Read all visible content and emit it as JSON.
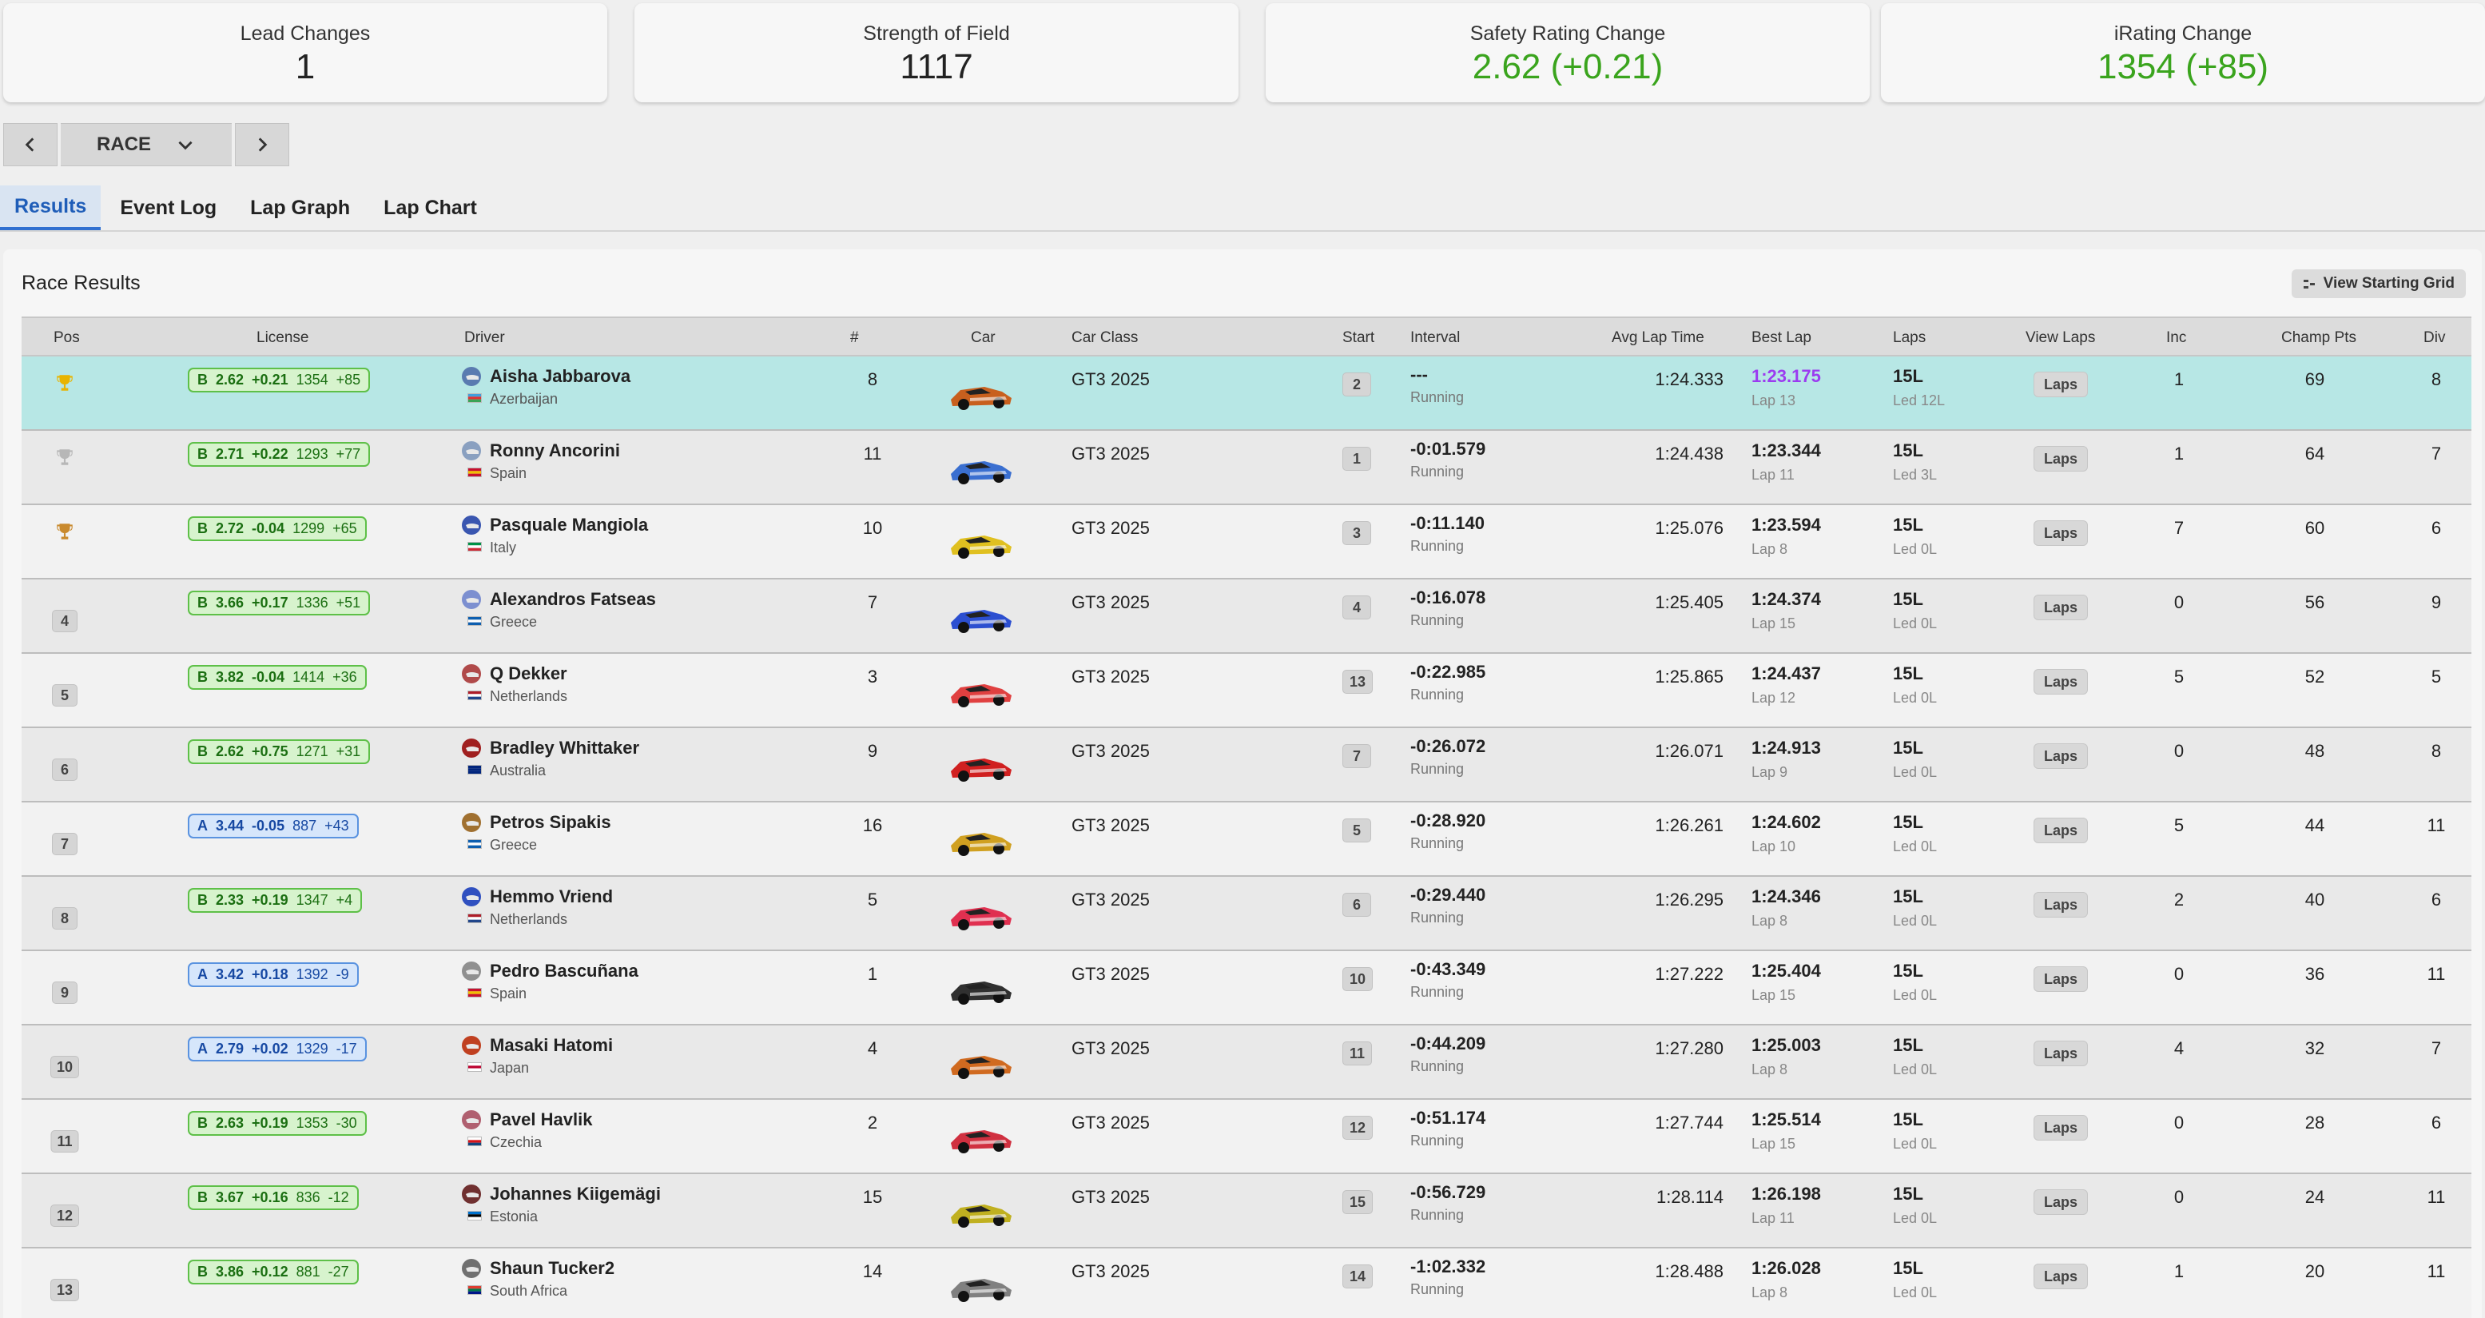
{
  "stats": [
    {
      "label": "Lead Changes",
      "value": "1",
      "color": "#222222"
    },
    {
      "label": "Strength of Field",
      "value": "1117",
      "color": "#222222"
    },
    {
      "label": "Safety Rating Change",
      "value": "2.62 (+0.21)",
      "color": "#3aa41d"
    },
    {
      "label": "iRating Change",
      "value": "1354 (+85)",
      "color": "#3aa41d"
    }
  ],
  "session_nav": {
    "selected": "RACE",
    "prev_icon": "chevron-left-icon",
    "next_icon": "chevron-right-icon",
    "dropdown_icon": "chevron-down-icon"
  },
  "tabs": [
    {
      "label": "Results",
      "active": true
    },
    {
      "label": "Event Log",
      "active": false
    },
    {
      "label": "Lap Graph",
      "active": false
    },
    {
      "label": "Lap Chart",
      "active": false
    }
  ],
  "panel": {
    "title": "Race Results",
    "grid_button": "View Starting Grid",
    "grid_icon": "grid-icon"
  },
  "columns": [
    "Pos",
    "License",
    "Driver",
    "#",
    "Car",
    "Car Class",
    "Start",
    "Interval",
    "Avg Lap Time",
    "Best Lap",
    "Laps",
    "View Laps",
    "Inc",
    "Champ Pts",
    "Div"
  ],
  "laps_button": "Laps",
  "colors": {
    "license_b": "#5ec048",
    "license_a": "#5a93e0",
    "winner_row": "#b7e7e5",
    "fastest_lap": "#9b3cf0",
    "positive": "#3aa41d"
  },
  "rows": [
    {
      "pos": "",
      "trophy": "gold",
      "lic_class": "B",
      "lic_sr": "2.62",
      "lic_sr_delta": "+0.21",
      "lic_ir": "1354",
      "lic_ir_delta": "+85",
      "lic_color": "green",
      "driver": "Aisha Jabbarova",
      "country": "Azerbaijan",
      "flag": [
        "#3f9fdc",
        "#e03030",
        "#3aa356"
      ],
      "helmet": "#5a7bb0",
      "number": "8",
      "car_color": "#c8601e",
      "class": "GT3 2025",
      "start": "2",
      "interval": "---",
      "status": "Running",
      "avg": "1:24.333",
      "best": "1:23.175",
      "best_lap": "Lap 13",
      "best_purple": true,
      "laps": "15L",
      "led": "Led 12L",
      "inc": "1",
      "pts": "69",
      "div": "8"
    },
    {
      "pos": "",
      "trophy": "silver",
      "lic_class": "B",
      "lic_sr": "2.71",
      "lic_sr_delta": "+0.22",
      "lic_ir": "1293",
      "lic_ir_delta": "+77",
      "lic_color": "green",
      "driver": "Ronny Ancorini",
      "country": "Spain",
      "flag": [
        "#c8102e",
        "#f1bf00",
        "#c8102e"
      ],
      "helmet": "#8aa0c0",
      "number": "11",
      "car_color": "#3a6fd0",
      "class": "GT3 2025",
      "start": "1",
      "interval": "-0:01.579",
      "status": "Running",
      "avg": "1:24.438",
      "best": "1:23.344",
      "best_lap": "Lap 11",
      "best_purple": false,
      "laps": "15L",
      "led": "Led 3L",
      "inc": "1",
      "pts": "64",
      "div": "7"
    },
    {
      "pos": "",
      "trophy": "bronze",
      "lic_class": "B",
      "lic_sr": "2.72",
      "lic_sr_delta": "-0.04",
      "lic_ir": "1299",
      "lic_ir_delta": "+65",
      "lic_color": "green",
      "driver": "Pasquale Mangiola",
      "country": "Italy",
      "flag": [
        "#009246",
        "#ffffff",
        "#ce2b37"
      ],
      "helmet": "#3a56b0",
      "number": "10",
      "car_color": "#e0c020",
      "class": "GT3 2025",
      "start": "3",
      "interval": "-0:11.140",
      "status": "Running",
      "avg": "1:25.076",
      "best": "1:23.594",
      "best_lap": "Lap 8",
      "best_purple": false,
      "laps": "15L",
      "led": "Led 0L",
      "inc": "7",
      "pts": "60",
      "div": "6"
    },
    {
      "pos": "4",
      "trophy": "",
      "lic_class": "B",
      "lic_sr": "3.66",
      "lic_sr_delta": "+0.17",
      "lic_ir": "1336",
      "lic_ir_delta": "+51",
      "lic_color": "green",
      "driver": "Alexandros Fatseas",
      "country": "Greece",
      "flag": [
        "#0d5eaf",
        "#ffffff",
        "#0d5eaf"
      ],
      "helmet": "#7c8fd0",
      "number": "7",
      "car_color": "#2c4fd0",
      "class": "GT3 2025",
      "start": "4",
      "interval": "-0:16.078",
      "status": "Running",
      "avg": "1:25.405",
      "best": "1:24.374",
      "best_lap": "Lap 15",
      "best_purple": false,
      "laps": "15L",
      "led": "Led 0L",
      "inc": "0",
      "pts": "56",
      "div": "9"
    },
    {
      "pos": "5",
      "trophy": "",
      "lic_class": "B",
      "lic_sr": "3.82",
      "lic_sr_delta": "-0.04",
      "lic_ir": "1414",
      "lic_ir_delta": "+36",
      "lic_color": "green",
      "driver": "Q Dekker",
      "country": "Netherlands",
      "flag": [
        "#ae1c28",
        "#ffffff",
        "#21468b"
      ],
      "helmet": "#b04a4a",
      "number": "3",
      "car_color": "#e04040",
      "class": "GT3 2025",
      "start": "13",
      "interval": "-0:22.985",
      "status": "Running",
      "avg": "1:25.865",
      "best": "1:24.437",
      "best_lap": "Lap 12",
      "best_purple": false,
      "laps": "15L",
      "led": "Led 0L",
      "inc": "5",
      "pts": "52",
      "div": "5"
    },
    {
      "pos": "6",
      "trophy": "",
      "lic_class": "B",
      "lic_sr": "2.62",
      "lic_sr_delta": "+0.75",
      "lic_ir": "1271",
      "lic_ir_delta": "+31",
      "lic_color": "green",
      "driver": "Bradley Whittaker",
      "country": "Australia",
      "flag": [
        "#00247d",
        "#00247d",
        "#00247d"
      ],
      "helmet": "#a02020",
      "number": "9",
      "car_color": "#d02020",
      "class": "GT3 2025",
      "start": "7",
      "interval": "-0:26.072",
      "status": "Running",
      "avg": "1:26.071",
      "best": "1:24.913",
      "best_lap": "Lap 9",
      "best_purple": false,
      "laps": "15L",
      "led": "Led 0L",
      "inc": "0",
      "pts": "48",
      "div": "8"
    },
    {
      "pos": "7",
      "trophy": "",
      "lic_class": "A",
      "lic_sr": "3.44",
      "lic_sr_delta": "-0.05",
      "lic_ir": "887",
      "lic_ir_delta": "+43",
      "lic_color": "blue",
      "driver": "Petros Sipakis",
      "country": "Greece",
      "flag": [
        "#0d5eaf",
        "#ffffff",
        "#0d5eaf"
      ],
      "helmet": "#a07030",
      "number": "16",
      "car_color": "#d0a020",
      "class": "GT3 2025",
      "start": "5",
      "interval": "-0:28.920",
      "status": "Running",
      "avg": "1:26.261",
      "best": "1:24.602",
      "best_lap": "Lap 10",
      "best_purple": false,
      "laps": "15L",
      "led": "Led 0L",
      "inc": "5",
      "pts": "44",
      "div": "11"
    },
    {
      "pos": "8",
      "trophy": "",
      "lic_class": "B",
      "lic_sr": "2.33",
      "lic_sr_delta": "+0.19",
      "lic_ir": "1347",
      "lic_ir_delta": "+4",
      "lic_color": "green",
      "driver": "Hemmo Vriend",
      "country": "Netherlands",
      "flag": [
        "#ae1c28",
        "#ffffff",
        "#21468b"
      ],
      "helmet": "#3050c0",
      "number": "5",
      "car_color": "#e03050",
      "class": "GT3 2025",
      "start": "6",
      "interval": "-0:29.440",
      "status": "Running",
      "avg": "1:26.295",
      "best": "1:24.346",
      "best_lap": "Lap 8",
      "best_purple": false,
      "laps": "15L",
      "led": "Led 0L",
      "inc": "2",
      "pts": "40",
      "div": "6"
    },
    {
      "pos": "9",
      "trophy": "",
      "lic_class": "A",
      "lic_sr": "3.42",
      "lic_sr_delta": "+0.18",
      "lic_ir": "1392",
      "lic_ir_delta": "-9",
      "lic_color": "blue",
      "driver": "Pedro Bascuñana",
      "country": "Spain",
      "flag": [
        "#c8102e",
        "#f1bf00",
        "#c8102e"
      ],
      "helmet": "#909090",
      "number": "1",
      "car_color": "#303030",
      "class": "GT3 2025",
      "start": "10",
      "interval": "-0:43.349",
      "status": "Running",
      "avg": "1:27.222",
      "best": "1:25.404",
      "best_lap": "Lap 15",
      "best_purple": false,
      "laps": "15L",
      "led": "Led 0L",
      "inc": "0",
      "pts": "36",
      "div": "11"
    },
    {
      "pos": "10",
      "trophy": "",
      "lic_class": "A",
      "lic_sr": "2.79",
      "lic_sr_delta": "+0.02",
      "lic_ir": "1329",
      "lic_ir_delta": "-17",
      "lic_color": "blue",
      "driver": "Masaki Hatomi",
      "country": "Japan",
      "flag": [
        "#ffffff",
        "#bc002d",
        "#ffffff"
      ],
      "helmet": "#c04020",
      "number": "4",
      "car_color": "#d06a20",
      "class": "GT3 2025",
      "start": "11",
      "interval": "-0:44.209",
      "status": "Running",
      "avg": "1:27.280",
      "best": "1:25.003",
      "best_lap": "Lap 8",
      "best_purple": false,
      "laps": "15L",
      "led": "Led 0L",
      "inc": "4",
      "pts": "32",
      "div": "7"
    },
    {
      "pos": "11",
      "trophy": "",
      "lic_class": "B",
      "lic_sr": "2.63",
      "lic_sr_delta": "+0.19",
      "lic_ir": "1353",
      "lic_ir_delta": "-30",
      "lic_color": "green",
      "driver": "Pavel Havlik",
      "country": "Czechia",
      "flag": [
        "#ffffff",
        "#d7141a",
        "#11457e"
      ],
      "helmet": "#b06070",
      "number": "2",
      "car_color": "#d03040",
      "class": "GT3 2025",
      "start": "12",
      "interval": "-0:51.174",
      "status": "Running",
      "avg": "1:27.744",
      "best": "1:25.514",
      "best_lap": "Lap 15",
      "best_purple": false,
      "laps": "15L",
      "led": "Led 0L",
      "inc": "0",
      "pts": "28",
      "div": "6"
    },
    {
      "pos": "12",
      "trophy": "",
      "lic_class": "B",
      "lic_sr": "3.67",
      "lic_sr_delta": "+0.16",
      "lic_ir": "836",
      "lic_ir_delta": "-12",
      "lic_color": "green",
      "driver": "Johannes Kiigemägi",
      "country": "Estonia",
      "flag": [
        "#0072ce",
        "#000000",
        "#ffffff"
      ],
      "helmet": "#703030",
      "number": "15",
      "car_color": "#c0b020",
      "class": "GT3 2025",
      "start": "15",
      "interval": "-0:56.729",
      "status": "Running",
      "avg": "1:28.114",
      "best": "1:26.198",
      "best_lap": "Lap 11",
      "best_purple": false,
      "laps": "15L",
      "led": "Led 0L",
      "inc": "0",
      "pts": "24",
      "div": "11"
    },
    {
      "pos": "13",
      "trophy": "",
      "lic_class": "B",
      "lic_sr": "3.86",
      "lic_sr_delta": "+0.12",
      "lic_ir": "881",
      "lic_ir_delta": "-27",
      "lic_color": "green",
      "driver": "Shaun Tucker2",
      "country": "South Africa",
      "flag": [
        "#e03c31",
        "#007749",
        "#001489"
      ],
      "helmet": "#707070",
      "number": "14",
      "car_color": "#808080",
      "class": "GT3 2025",
      "start": "14",
      "interval": "-1:02.332",
      "status": "Running",
      "avg": "1:28.488",
      "best": "1:26.028",
      "best_lap": "Lap 8",
      "best_purple": false,
      "laps": "15L",
      "led": "Led 0L",
      "inc": "1",
      "pts": "20",
      "div": "11"
    }
  ]
}
